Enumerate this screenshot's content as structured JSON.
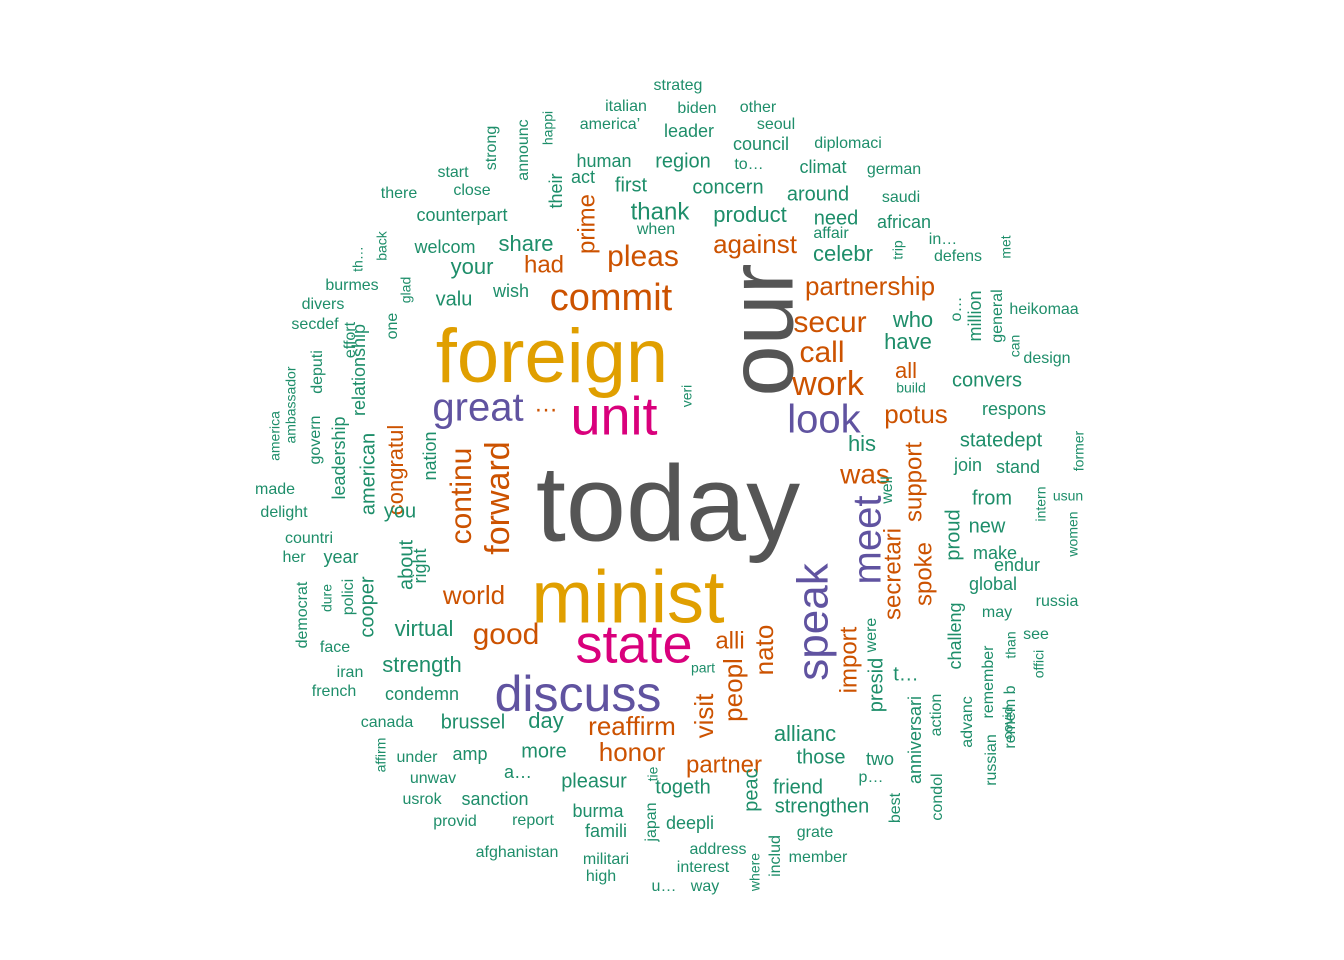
{
  "palette": {
    "top": "#555555",
    "orange": "#E09F00",
    "pink": "#D9007C",
    "purple": "#6053A0",
    "red": "#CC5200",
    "green": "#1E8E6A"
  },
  "words": [
    {
      "text": "today",
      "color": "top"
    },
    {
      "text": "our",
      "color": "top"
    },
    {
      "text": "foreign",
      "color": "orange"
    },
    {
      "text": "minist",
      "color": "orange"
    },
    {
      "text": "unit",
      "color": "pink"
    },
    {
      "text": "state",
      "color": "pink"
    },
    {
      "text": "discuss",
      "color": "purple"
    },
    {
      "text": "great",
      "color": "purple"
    },
    {
      "text": "speak",
      "color": "purple"
    },
    {
      "text": "meet",
      "color": "purple"
    },
    {
      "text": "look",
      "color": "purple"
    },
    {
      "text": "commit",
      "color": "red"
    },
    {
      "text": "work",
      "color": "red"
    },
    {
      "text": "forward",
      "color": "red"
    },
    {
      "text": "continu",
      "color": "red"
    },
    {
      "text": "pleas",
      "color": "red"
    },
    {
      "text": "secur",
      "color": "red"
    },
    {
      "text": "call",
      "color": "red"
    },
    {
      "text": "partnership",
      "color": "red"
    },
    {
      "text": "against",
      "color": "red"
    },
    {
      "text": "was",
      "color": "red"
    },
    {
      "text": "potus",
      "color": "red"
    },
    {
      "text": "support",
      "color": "red"
    },
    {
      "text": "spoke",
      "color": "red"
    },
    {
      "text": "secretari",
      "color": "red"
    },
    {
      "text": "import",
      "color": "red"
    },
    {
      "text": "nato",
      "color": "red"
    },
    {
      "text": "peopl",
      "color": "red"
    },
    {
      "text": "alli",
      "color": "red"
    },
    {
      "text": "visit",
      "color": "red"
    },
    {
      "text": "reaffirm",
      "color": "red"
    },
    {
      "text": "honor",
      "color": "red"
    },
    {
      "text": "partner",
      "color": "red"
    },
    {
      "text": "good",
      "color": "red"
    },
    {
      "text": "world",
      "color": "red"
    },
    {
      "text": "congratul",
      "color": "red"
    },
    {
      "text": "had",
      "color": "red"
    },
    {
      "text": "prime",
      "color": "red"
    },
    {
      "text": "all",
      "color": "red"
    },
    {
      "text": "…",
      "color": "red"
    },
    {
      "text": "thank",
      "color": "green"
    },
    {
      "text": "share",
      "color": "green"
    },
    {
      "text": "your",
      "color": "green"
    },
    {
      "text": "valu",
      "color": "green"
    },
    {
      "text": "wish",
      "color": "green"
    },
    {
      "text": "welcom",
      "color": "green"
    },
    {
      "text": "counterpart",
      "color": "green"
    },
    {
      "text": "product",
      "color": "green"
    },
    {
      "text": "concern",
      "color": "green"
    },
    {
      "text": "first",
      "color": "green"
    },
    {
      "text": "human",
      "color": "green"
    },
    {
      "text": "region",
      "color": "green"
    },
    {
      "text": "act",
      "color": "green"
    },
    {
      "text": "when",
      "color": "green"
    },
    {
      "text": "need",
      "color": "green"
    },
    {
      "text": "around",
      "color": "green"
    },
    {
      "text": "celebr",
      "color": "green"
    },
    {
      "text": "who",
      "color": "green"
    },
    {
      "text": "have",
      "color": "green"
    },
    {
      "text": "his",
      "color": "green"
    },
    {
      "text": "convers",
      "color": "green"
    },
    {
      "text": "respons",
      "color": "green"
    },
    {
      "text": "statedept",
      "color": "green"
    },
    {
      "text": "join",
      "color": "green"
    },
    {
      "text": "stand",
      "color": "green"
    },
    {
      "text": "from",
      "color": "green"
    },
    {
      "text": "new",
      "color": "green"
    },
    {
      "text": "make",
      "color": "green"
    },
    {
      "text": "endur",
      "color": "green"
    },
    {
      "text": "global",
      "color": "green"
    },
    {
      "text": "proud",
      "color": "green"
    },
    {
      "text": "challeng",
      "color": "green"
    },
    {
      "text": "may",
      "color": "green"
    },
    {
      "text": "remember",
      "color": "green"
    },
    {
      "text": "see",
      "color": "green"
    },
    {
      "text": "russia",
      "color": "green"
    },
    {
      "text": "presid",
      "color": "green"
    },
    {
      "text": "t…",
      "color": "green"
    },
    {
      "text": "were",
      "color": "green"
    },
    {
      "text": "allianc",
      "color": "green"
    },
    {
      "text": "those",
      "color": "green"
    },
    {
      "text": "two",
      "color": "green"
    },
    {
      "text": "p…",
      "color": "green"
    },
    {
      "text": "anniversari",
      "color": "green"
    },
    {
      "text": "action",
      "color": "green"
    },
    {
      "text": "advanc",
      "color": "green"
    },
    {
      "text": "russian",
      "color": "green"
    },
    {
      "text": "remem b",
      "color": "green"
    },
    {
      "text": "covid",
      "color": "green"
    },
    {
      "text": "offici",
      "color": "green"
    },
    {
      "text": "than",
      "color": "green"
    },
    {
      "text": "friend",
      "color": "green"
    },
    {
      "text": "strengthen",
      "color": "green"
    },
    {
      "text": "grate",
      "color": "green"
    },
    {
      "text": "member",
      "color": "green"
    },
    {
      "text": "best",
      "color": "green"
    },
    {
      "text": "condol",
      "color": "green"
    },
    {
      "text": "togeth",
      "color": "green"
    },
    {
      "text": "peac",
      "color": "green"
    },
    {
      "text": "deepli",
      "color": "green"
    },
    {
      "text": "address",
      "color": "green"
    },
    {
      "text": "interest",
      "color": "green"
    },
    {
      "text": "way",
      "color": "green"
    },
    {
      "text": "includ",
      "color": "green"
    },
    {
      "text": "where",
      "color": "green"
    },
    {
      "text": "pleasur",
      "color": "green"
    },
    {
      "text": "burma",
      "color": "green"
    },
    {
      "text": "famili",
      "color": "green"
    },
    {
      "text": "militari",
      "color": "green"
    },
    {
      "text": "high",
      "color": "green"
    },
    {
      "text": "u…",
      "color": "green"
    },
    {
      "text": "japan",
      "color": "green"
    },
    {
      "text": "tie",
      "color": "green"
    },
    {
      "text": "a…",
      "color": "green"
    },
    {
      "text": "more",
      "color": "green"
    },
    {
      "text": "day",
      "color": "green"
    },
    {
      "text": "brussel",
      "color": "green"
    },
    {
      "text": "amp",
      "color": "green"
    },
    {
      "text": "under",
      "color": "green"
    },
    {
      "text": "unwav",
      "color": "green"
    },
    {
      "text": "usrok",
      "color": "green"
    },
    {
      "text": "sanction",
      "color": "green"
    },
    {
      "text": "report",
      "color": "green"
    },
    {
      "text": "provid",
      "color": "green"
    },
    {
      "text": "afghanistan",
      "color": "green"
    },
    {
      "text": "affirm",
      "color": "green"
    },
    {
      "text": "canada",
      "color": "green"
    },
    {
      "text": "condemn",
      "color": "green"
    },
    {
      "text": "strength",
      "color": "green"
    },
    {
      "text": "virtual",
      "color": "green"
    },
    {
      "text": "cooper",
      "color": "green"
    },
    {
      "text": "polici",
      "color": "green"
    },
    {
      "text": "dure",
      "color": "green"
    },
    {
      "text": "democrat",
      "color": "green"
    },
    {
      "text": "face",
      "color": "green"
    },
    {
      "text": "iran",
      "color": "green"
    },
    {
      "text": "french",
      "color": "green"
    },
    {
      "text": "her",
      "color": "green"
    },
    {
      "text": "year",
      "color": "green"
    },
    {
      "text": "countri",
      "color": "green"
    },
    {
      "text": "delight",
      "color": "green"
    },
    {
      "text": "made",
      "color": "green"
    },
    {
      "text": "america",
      "color": "green"
    },
    {
      "text": "ambassador",
      "color": "green"
    },
    {
      "text": "govern",
      "color": "green"
    },
    {
      "text": "deputi",
      "color": "green"
    },
    {
      "text": "leadership",
      "color": "green"
    },
    {
      "text": "american",
      "color": "green"
    },
    {
      "text": "relationship",
      "color": "green"
    },
    {
      "text": "effort",
      "color": "green"
    },
    {
      "text": "one",
      "color": "green"
    },
    {
      "text": "glad",
      "color": "green"
    },
    {
      "text": "back",
      "color": "green"
    },
    {
      "text": "th…",
      "color": "green"
    },
    {
      "text": "burmes",
      "color": "green"
    },
    {
      "text": "divers",
      "color": "green"
    },
    {
      "text": "secdef",
      "color": "green"
    },
    {
      "text": "you",
      "color": "green"
    },
    {
      "text": "about",
      "color": "green"
    },
    {
      "text": "right",
      "color": "green"
    },
    {
      "text": "nation",
      "color": "green"
    },
    {
      "text": "veri",
      "color": "green"
    },
    {
      "text": "there",
      "color": "green"
    },
    {
      "text": "close",
      "color": "green"
    },
    {
      "text": "start",
      "color": "green"
    },
    {
      "text": "strong",
      "color": "green"
    },
    {
      "text": "announc",
      "color": "green"
    },
    {
      "text": "happi",
      "color": "green"
    },
    {
      "text": "their",
      "color": "green"
    },
    {
      "text": "strateg",
      "color": "green"
    },
    {
      "text": "italian",
      "color": "green"
    },
    {
      "text": "biden",
      "color": "green"
    },
    {
      "text": "other",
      "color": "green"
    },
    {
      "text": "america’",
      "color": "green"
    },
    {
      "text": "leader",
      "color": "green"
    },
    {
      "text": "seoul",
      "color": "green"
    },
    {
      "text": "council",
      "color": "green"
    },
    {
      "text": "diplomaci",
      "color": "green"
    },
    {
      "text": "to…",
      "color": "green"
    },
    {
      "text": "climat",
      "color": "green"
    },
    {
      "text": "german",
      "color": "green"
    },
    {
      "text": "saudi",
      "color": "green"
    },
    {
      "text": "african",
      "color": "green"
    },
    {
      "text": "affair",
      "color": "green"
    },
    {
      "text": "trip",
      "color": "green"
    },
    {
      "text": "in…",
      "color": "green"
    },
    {
      "text": "defens",
      "color": "green"
    },
    {
      "text": "met",
      "color": "green"
    },
    {
      "text": "heikomaa",
      "color": "green"
    },
    {
      "text": "o…",
      "color": "green"
    },
    {
      "text": "million",
      "color": "green"
    },
    {
      "text": "general",
      "color": "green"
    },
    {
      "text": "can",
      "color": "green"
    },
    {
      "text": "design",
      "color": "green"
    },
    {
      "text": "build",
      "color": "green"
    },
    {
      "text": "well",
      "color": "green"
    },
    {
      "text": "intern",
      "color": "green"
    },
    {
      "text": "usun",
      "color": "green"
    },
    {
      "text": "women",
      "color": "green"
    },
    {
      "text": "former",
      "color": "green"
    },
    {
      "text": "part",
      "color": "green"
    }
  ]
}
